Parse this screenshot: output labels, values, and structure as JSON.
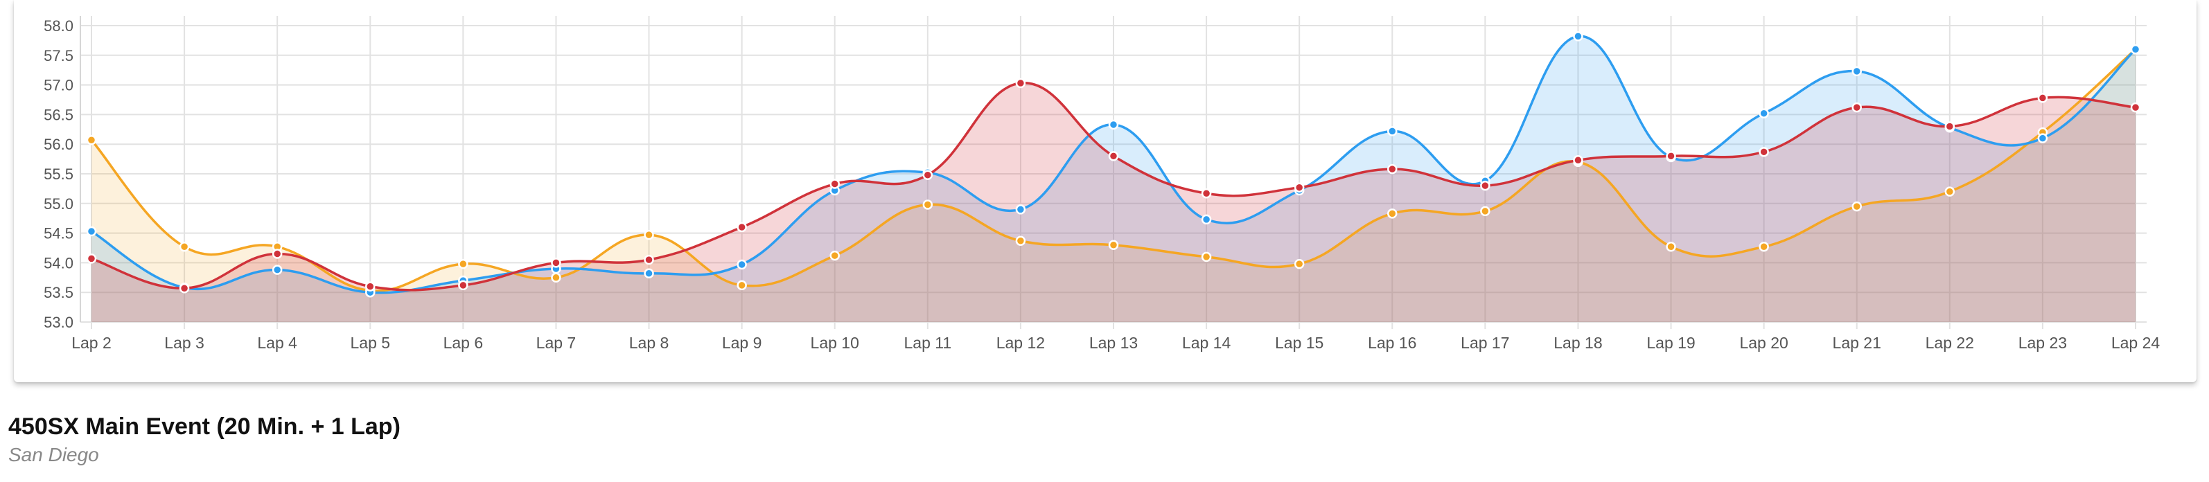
{
  "event": {
    "title": "450SX Main Event (20 Min. + 1 Lap)",
    "location": "San Diego"
  },
  "chart_data": {
    "type": "area",
    "title": "",
    "xlabel": "",
    "ylabel": "",
    "categories": [
      "Lap 2",
      "Lap 3",
      "Lap 4",
      "Lap 5",
      "Lap 6",
      "Lap 7",
      "Lap 8",
      "Lap 9",
      "Lap 10",
      "Lap 11",
      "Lap 12",
      "Lap 13",
      "Lap 14",
      "Lap 15",
      "Lap 16",
      "Lap 17",
      "Lap 18",
      "Lap 19",
      "Lap 20",
      "Lap 21",
      "Lap 22",
      "Lap 23",
      "Lap 24"
    ],
    "ylim": [
      53.0,
      58.0
    ],
    "yticks": [
      "53.0",
      "53.5",
      "54.0",
      "54.5",
      "55.0",
      "55.5",
      "56.0",
      "56.5",
      "57.0",
      "57.5",
      "58.0"
    ],
    "grid": true,
    "curve": "smooth",
    "series": [
      {
        "color": "#f5a623",
        "fill": "rgba(245,166,35,0.16)",
        "values": [
          56.07,
          54.27,
          54.27,
          53.53,
          53.98,
          53.75,
          54.47,
          53.62,
          54.12,
          54.98,
          54.37,
          54.3,
          54.1,
          53.98,
          54.83,
          54.87,
          55.7,
          54.27,
          54.27,
          54.95,
          55.2,
          56.2,
          57.6
        ]
      },
      {
        "color": "#2d9df0",
        "fill": "rgba(45,157,240,0.18)",
        "values": [
          54.53,
          53.58,
          53.88,
          53.5,
          53.7,
          53.9,
          53.82,
          53.97,
          55.22,
          55.52,
          54.9,
          56.33,
          54.73,
          55.22,
          56.22,
          55.38,
          57.82,
          55.78,
          56.52,
          57.23,
          56.28,
          56.1,
          57.6
        ]
      },
      {
        "color": "#d0323a",
        "fill": "rgba(208,50,58,0.20)",
        "values": [
          54.07,
          53.57,
          54.15,
          53.6,
          53.62,
          54.0,
          54.05,
          54.6,
          55.33,
          55.48,
          57.03,
          55.8,
          55.17,
          55.27,
          55.58,
          55.3,
          55.73,
          55.8,
          55.87,
          56.62,
          56.3,
          56.78,
          56.62
        ]
      }
    ]
  }
}
